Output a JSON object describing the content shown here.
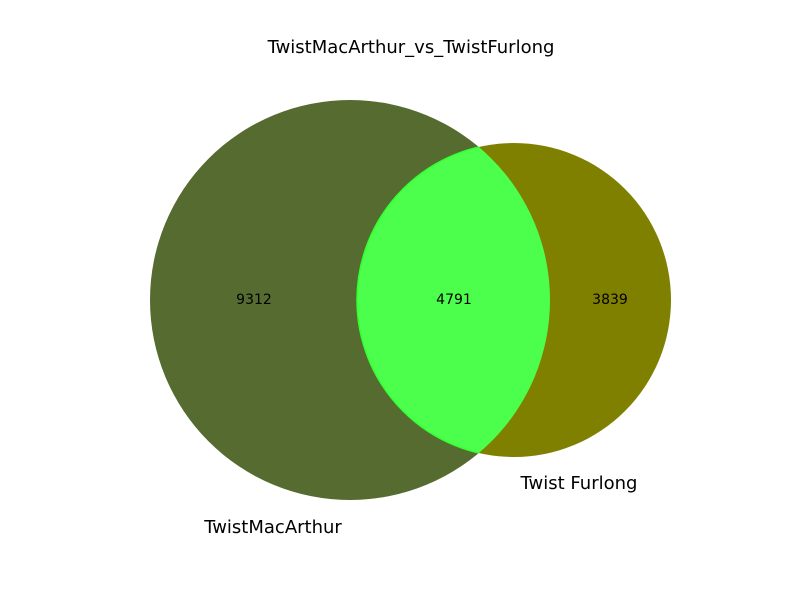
{
  "chart_data": {
    "type": "venn",
    "title": "TwistMacArthur_vs_TwistFurlong",
    "sets": [
      {
        "name": "TwistMacArthur",
        "only_count": "9312",
        "color": "#556b2f"
      },
      {
        "name": "Twist Furlong",
        "only_count": "3839",
        "color": "#808000"
      }
    ],
    "intersection": {
      "count": "4791",
      "color": "#4cff4c"
    }
  }
}
